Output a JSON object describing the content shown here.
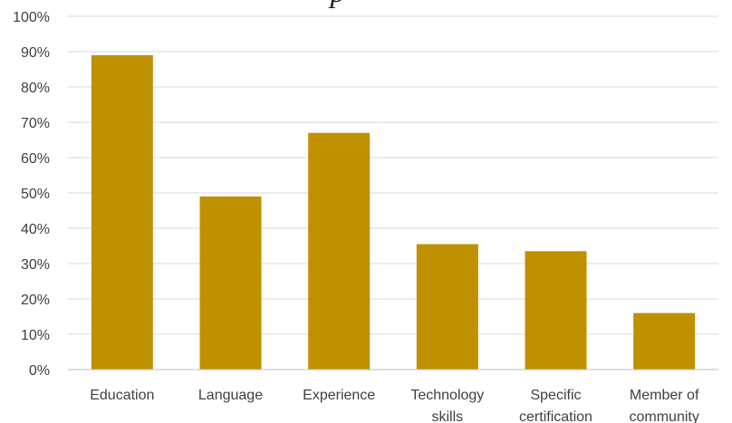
{
  "chart_data": {
    "type": "bar",
    "title_fragment": "p",
    "categories": [
      [
        "Education"
      ],
      [
        "Language"
      ],
      [
        "Experience"
      ],
      [
        "Technology",
        "skills"
      ],
      [
        "Specific",
        "certification"
      ],
      [
        "Member of",
        "community"
      ]
    ],
    "values": [
      0.89,
      0.49,
      0.67,
      0.355,
      0.335,
      0.16
    ],
    "ylim": [
      0,
      1
    ],
    "yticks": [
      "0%",
      "10%",
      "20%",
      "30%",
      "40%",
      "50%",
      "60%",
      "70%",
      "80%",
      "90%",
      "100%"
    ],
    "bar_color": "#BF9000",
    "grid": true
  }
}
